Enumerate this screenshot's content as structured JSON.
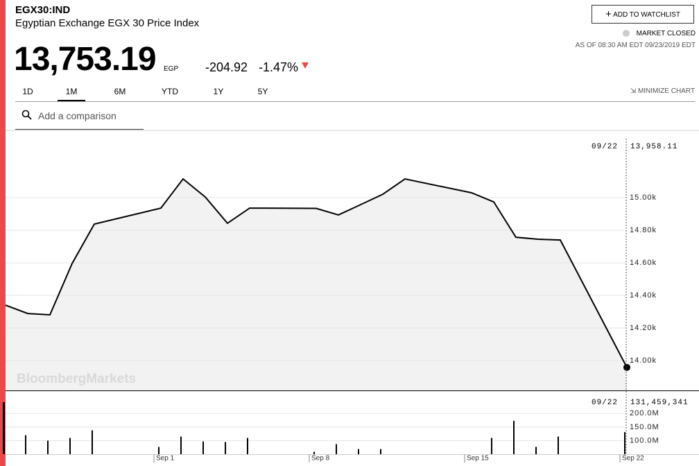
{
  "header": {
    "symbol": "EGX30:IND",
    "name": "Egyptian Exchange EGX 30 Price Index",
    "price": "13,753.19",
    "currency": "EGP",
    "change": "-204.92",
    "change_percent": "-1.47%",
    "watchlist_button": "ADD TO WATCHLIST",
    "market_status": "MARKET CLOSED",
    "as_of": "AS OF 08:30 AM EDT 09/23/2019 EDT",
    "ranges": [
      "1D",
      "1M",
      "6M",
      "YTD",
      "1Y",
      "5Y"
    ],
    "active_range": "1M",
    "minimize": "MINIMIZE CHART",
    "comparison_placeholder": "Add a comparison"
  },
  "chart_data": {
    "type": "line",
    "watermark": "BloombergMarkets",
    "crosshair_label": "09/22",
    "categories": [
      null,
      null,
      null,
      null,
      null,
      "Sep 1",
      null,
      null,
      null,
      null,
      "Sep 8",
      null,
      null,
      null,
      null,
      "Sep 15",
      null,
      null,
      null,
      null,
      "Sep 22"
    ],
    "series": [
      {
        "color": "#000000",
        "fill": "#f2f2f2",
        "values": [
          14340,
          14289,
          14281,
          14596,
          14838,
          14936,
          15115,
          15004,
          14843,
          14936,
          14934,
          14894,
          14957,
          15021,
          15115,
          15030,
          14974,
          14757,
          14745,
          14740,
          13958.11
        ],
        "value_labels": [
          null,
          null,
          null,
          null,
          null,
          null,
          null,
          null,
          null,
          null,
          null,
          null,
          null,
          null,
          null,
          null,
          null,
          null,
          null,
          null,
          "13,958.11"
        ]
      },
      {
        "type": "bar",
        "axis": "y2",
        "color": "#000000",
        "values": [
          244000000,
          120000000,
          100000000,
          110000000,
          138000000,
          77000000,
          115000000,
          97000000,
          95000000,
          110000000,
          59000000,
          87000000,
          69000000,
          69000000,
          null,
          null,
          110000000,
          173000000,
          77000000,
          115000000,
          131459341
        ],
        "value_labels": [
          null,
          null,
          null,
          null,
          null,
          null,
          null,
          null,
          null,
          null,
          null,
          null,
          null,
          null,
          null,
          null,
          null,
          null,
          null,
          null,
          "131,459,341"
        ]
      }
    ],
    "ylim": [
      13817,
      15413
    ],
    "yticks": [
      {
        "value": 14000,
        "label": "14.00k"
      },
      {
        "value": 14200,
        "label": "14.20k"
      },
      {
        "value": 14400,
        "label": "14.40k"
      },
      {
        "value": 14600,
        "label": "14.60k"
      },
      {
        "value": 14800,
        "label": "14.80k"
      },
      {
        "value": 15000,
        "label": "15.00k"
      }
    ],
    "y2lim": [
      50000000,
      280000000
    ],
    "y2ticks": [
      {
        "value": 100000000,
        "label": "100.0M"
      },
      {
        "value": 150000000,
        "label": "150.0M"
      },
      {
        "value": 200000000,
        "label": "200.0M"
      }
    ],
    "grid": true
  }
}
